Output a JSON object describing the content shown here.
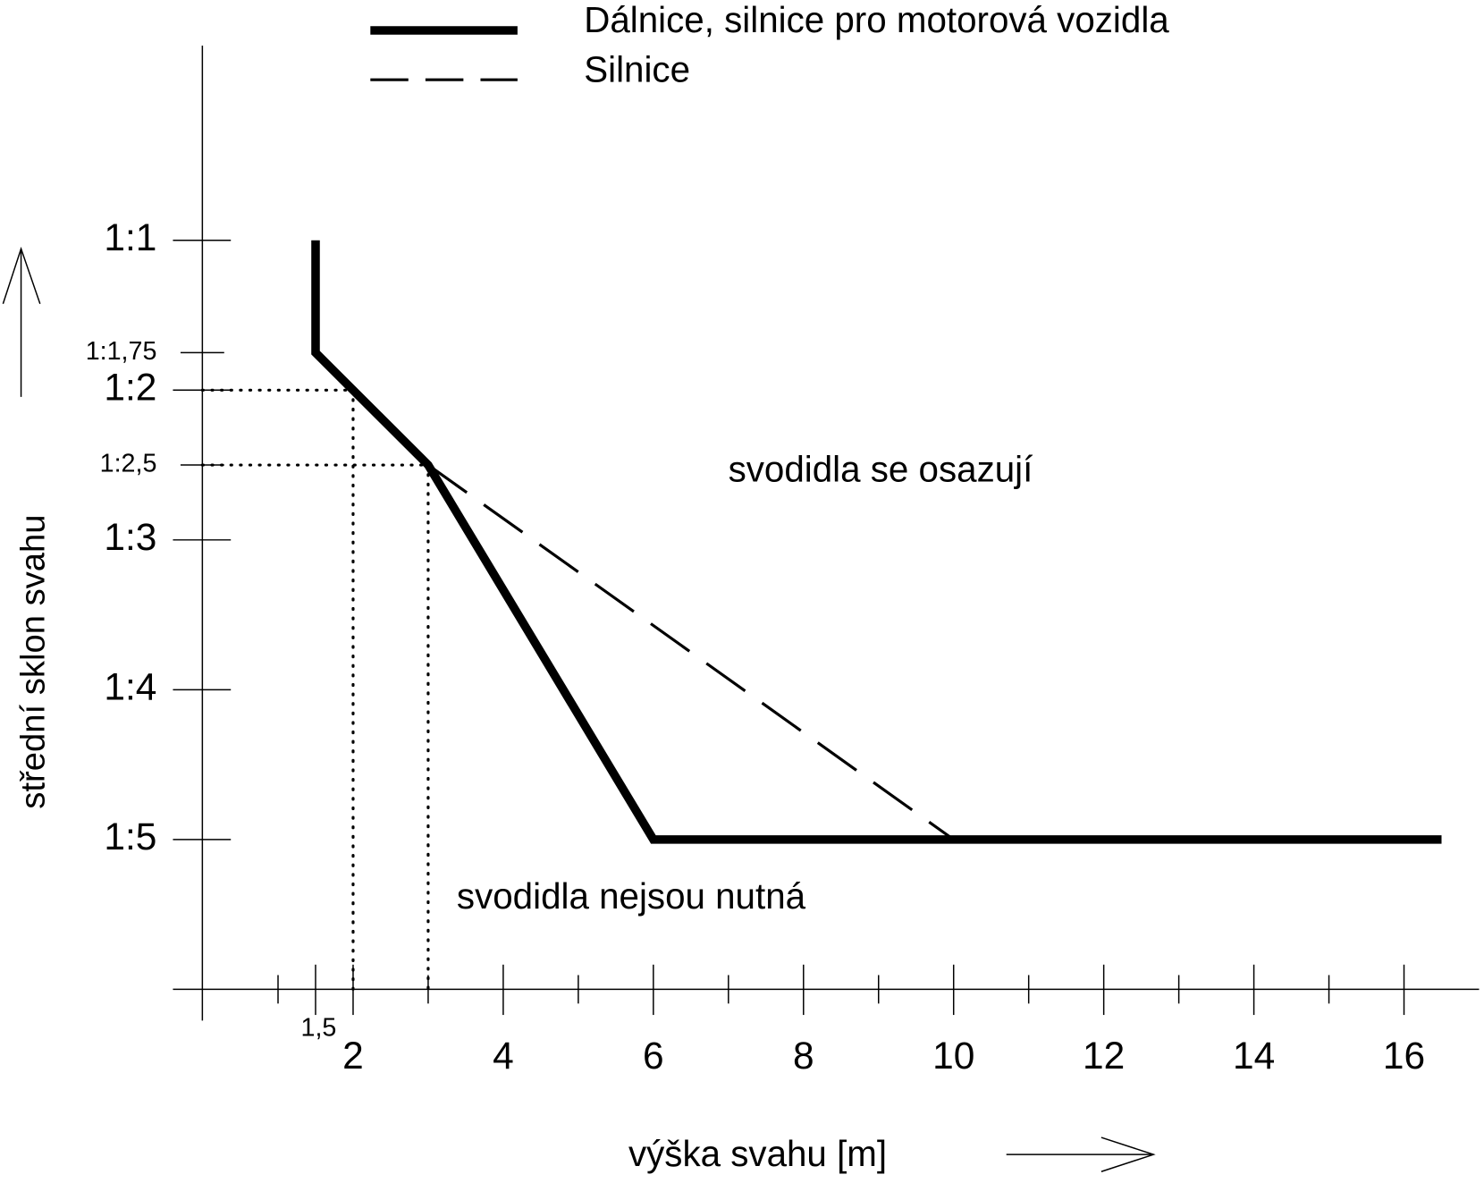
{
  "chart_data": {
    "type": "line",
    "x_label": "výška svahu [m]",
    "y_label": "střední sklon svahu",
    "annotations": [
      "svodidla se osazují",
      "svodidla nejsou nutná"
    ],
    "series": [
      {
        "name": "Dálnice, silnice pro motorová vozidla",
        "color": "#000000",
        "style": "solid",
        "x": [
          1.5,
          1.5,
          3,
          6,
          16.5
        ],
        "values": [
          1,
          1.75,
          2.5,
          5,
          5
        ]
      },
      {
        "name": "Silnice",
        "color": "#000000",
        "style": "dashed",
        "x": [
          3,
          10
        ],
        "values": [
          2.5,
          5
        ]
      }
    ],
    "guides": [
      {
        "x": 2,
        "y": 2
      },
      {
        "x": 3,
        "y": 2.5
      }
    ],
    "xlim": [
      -0.4,
      17
    ],
    "xticks": [
      {
        "value": 1.5,
        "label": "1,5"
      },
      2,
      4,
      6,
      8,
      10,
      12,
      14,
      16
    ],
    "xticks_minor": [
      1,
      3,
      5,
      7,
      9,
      11,
      13,
      15
    ],
    "ylim": [
      6,
      -0.3
    ],
    "yticks": [
      {
        "value": 1,
        "label": "1:1"
      },
      {
        "value": 1.75,
        "label": "1:1,75"
      },
      {
        "value": 2,
        "label": "1:2"
      },
      {
        "value": 2.5,
        "label": "1:2,5"
      },
      {
        "value": 3,
        "label": "1:3"
      },
      {
        "value": 4,
        "label": "1:4"
      },
      {
        "value": 5,
        "label": "1:5"
      }
    ],
    "legend": "top"
  }
}
